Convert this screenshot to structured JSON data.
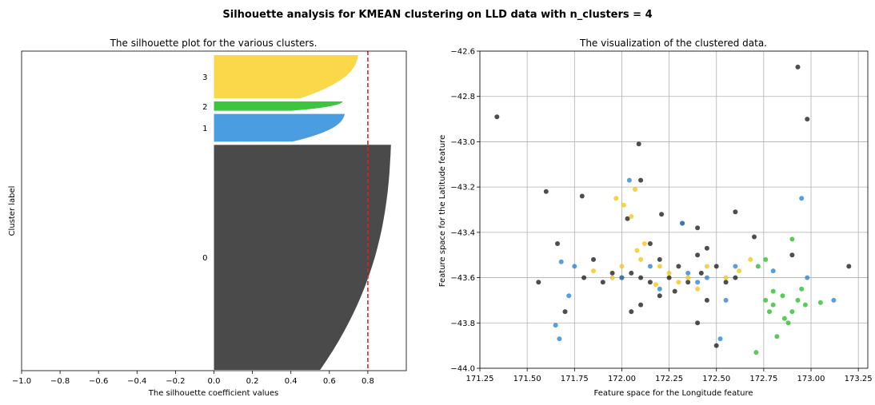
{
  "suptitle": "Silhouette analysis for KMEAN clustering on LLD data with n_clusters = 4",
  "chart_data": [
    {
      "type": "area",
      "title": "The silhouette plot for the various clusters.",
      "xlabel": "The silhouette coefficient values",
      "ylabel": "Cluster label",
      "xlim": [
        -1.0,
        1.0
      ],
      "xticks": [
        "−1.0",
        "−0.8",
        "−0.6",
        "−0.4",
        "−0.2",
        "0.0",
        "0.2",
        "0.4",
        "0.6",
        "0.8"
      ],
      "xtick_values": [
        -1.0,
        -0.8,
        -0.6,
        -0.4,
        -0.2,
        0.0,
        0.2,
        0.4,
        0.6,
        0.8
      ],
      "average_silhouette": 0.8,
      "grid": false,
      "clusters": [
        {
          "label": "0",
          "color": "#4a4a4a",
          "size_fraction": 0.73,
          "max": 0.92,
          "min": 0.0
        },
        {
          "label": "1",
          "color": "#4a9de0",
          "size_fraction": 0.09,
          "max": 0.68,
          "min": 0.0
        },
        {
          "label": "2",
          "color": "#3ec43e",
          "size_fraction": 0.03,
          "max": 0.67,
          "min": 0.0
        },
        {
          "label": "3",
          "color": "#fbd84a",
          "size_fraction": 0.14,
          "max": 0.75,
          "min": 0.0
        }
      ]
    },
    {
      "type": "scatter",
      "title": "The visualization of the clustered data.",
      "xlabel": "Feature space for the Longitude feature",
      "ylabel": "Feature space for the Latitude feature",
      "xlim": [
        171.25,
        173.3
      ],
      "ylim": [
        -44.0,
        -42.6
      ],
      "xticks": [
        "171.25",
        "171.50",
        "171.75",
        "172.00",
        "172.25",
        "172.50",
        "172.75",
        "173.00",
        "173.25"
      ],
      "xtick_values": [
        171.25,
        171.5,
        171.75,
        172.0,
        172.25,
        172.5,
        172.75,
        173.0,
        173.25
      ],
      "yticks": [
        "−44.0",
        "−43.8",
        "−43.6",
        "−43.4",
        "−43.2",
        "−43.0",
        "−42.8",
        "−42.6"
      ],
      "ytick_values": [
        -44.0,
        -43.8,
        -43.6,
        -43.4,
        -43.2,
        -43.0,
        -42.8,
        -42.6
      ],
      "grid": true,
      "series": [
        {
          "color": "#222222",
          "points": [
            [
              171.34,
              -42.89
            ],
            [
              172.93,
              -42.67
            ],
            [
              172.98,
              -42.9
            ],
            [
              172.09,
              -43.01
            ],
            [
              171.6,
              -43.22
            ],
            [
              171.66,
              -43.45
            ],
            [
              172.1,
              -43.17
            ],
            [
              171.79,
              -43.24
            ],
            [
              172.03,
              -43.34
            ],
            [
              172.21,
              -43.32
            ],
            [
              172.4,
              -43.38
            ],
            [
              172.6,
              -43.31
            ],
            [
              172.7,
              -43.42
            ],
            [
              171.56,
              -43.62
            ],
            [
              172.4,
              -43.8
            ],
            [
              172.5,
              -43.9
            ],
            [
              173.2,
              -43.55
            ],
            [
              172.9,
              -43.5
            ],
            [
              171.7,
              -43.75
            ],
            [
              172.32,
              -43.36
            ],
            [
              172.1,
              -43.72
            ],
            [
              172.2,
              -43.68
            ],
            [
              171.9,
              -43.62
            ],
            [
              172.6,
              -43.6
            ],
            [
              172.05,
              -43.75
            ],
            [
              172.45,
              -43.7
            ],
            [
              171.85,
              -43.52
            ],
            [
              172.35,
              -43.62
            ],
            [
              172.15,
              -43.45
            ],
            [
              172.5,
              -43.55
            ],
            [
              171.95,
              -43.58
            ],
            [
              172.25,
              -43.6
            ],
            [
              172.4,
              -43.5
            ],
            [
              172.0,
              -43.6
            ],
            [
              172.3,
              -43.55
            ],
            [
              172.1,
              -43.6
            ],
            [
              172.2,
              -43.52
            ],
            [
              172.05,
              -43.58
            ],
            [
              172.15,
              -43.62
            ],
            [
              172.28,
              -43.66
            ],
            [
              172.42,
              -43.58
            ],
            [
              171.8,
              -43.6
            ],
            [
              172.55,
              -43.62
            ],
            [
              172.45,
              -43.47
            ]
          ]
        },
        {
          "color": "#f5c518",
          "points": [
            [
              171.97,
              -43.25
            ],
            [
              172.01,
              -43.28
            ],
            [
              172.07,
              -43.21
            ],
            [
              172.05,
              -43.33
            ],
            [
              172.12,
              -43.45
            ],
            [
              172.2,
              -43.55
            ],
            [
              172.3,
              -43.62
            ],
            [
              172.35,
              -43.6
            ],
            [
              172.1,
              -43.52
            ],
            [
              171.95,
              -43.6
            ],
            [
              172.45,
              -43.55
            ],
            [
              172.55,
              -43.6
            ],
            [
              172.62,
              -43.57
            ],
            [
              172.0,
              -43.55
            ],
            [
              172.18,
              -43.63
            ],
            [
              172.25,
              -43.58
            ],
            [
              172.4,
              -43.65
            ],
            [
              171.85,
              -43.57
            ],
            [
              172.08,
              -43.48
            ],
            [
              172.68,
              -43.52
            ]
          ]
        },
        {
          "color": "#2e86d6",
          "points": [
            [
              172.04,
              -43.17
            ],
            [
              172.32,
              -43.36
            ],
            [
              172.95,
              -43.25
            ],
            [
              171.65,
              -43.81
            ],
            [
              171.67,
              -43.87
            ],
            [
              171.72,
              -43.68
            ],
            [
              172.52,
              -43.87
            ],
            [
              172.0,
              -43.6
            ],
            [
              172.2,
              -43.65
            ],
            [
              172.4,
              -43.62
            ],
            [
              172.6,
              -43.55
            ],
            [
              172.8,
              -43.57
            ],
            [
              173.12,
              -43.7
            ],
            [
              172.98,
              -43.6
            ],
            [
              171.75,
              -43.55
            ],
            [
              172.15,
              -43.55
            ],
            [
              172.35,
              -43.58
            ],
            [
              172.45,
              -43.6
            ],
            [
              172.55,
              -43.7
            ],
            [
              171.68,
              -43.53
            ]
          ]
        },
        {
          "color": "#2ebf2e",
          "points": [
            [
              172.71,
              -43.93
            ],
            [
              172.76,
              -43.7
            ],
            [
              172.8,
              -43.72
            ],
            [
              172.85,
              -43.68
            ],
            [
              172.9,
              -43.75
            ],
            [
              172.93,
              -43.7
            ],
            [
              172.95,
              -43.65
            ],
            [
              172.88,
              -43.8
            ],
            [
              172.82,
              -43.86
            ],
            [
              173.05,
              -43.71
            ],
            [
              172.78,
              -43.75
            ],
            [
              172.9,
              -43.43
            ],
            [
              172.76,
              -43.52
            ],
            [
              172.72,
              -43.55
            ],
            [
              172.86,
              -43.78
            ],
            [
              172.97,
              -43.72
            ],
            [
              172.8,
              -43.66
            ]
          ]
        }
      ]
    }
  ]
}
